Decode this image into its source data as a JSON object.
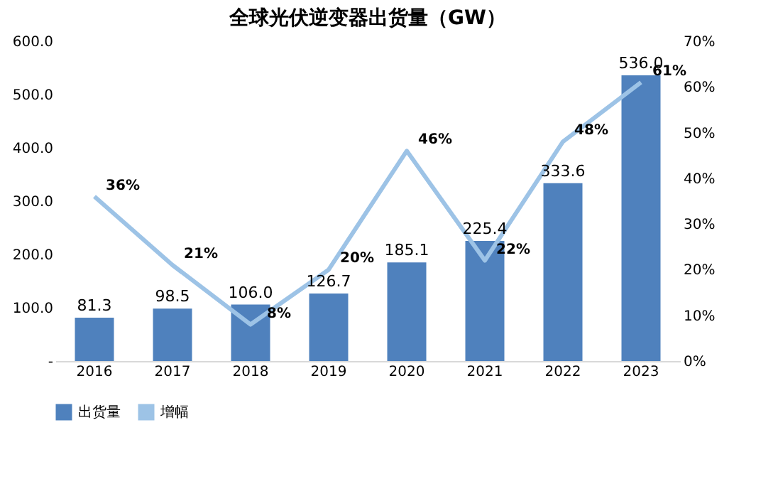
{
  "chart_data": {
    "type": "bar",
    "title": "全球光伏逆变器出货量（GW）",
    "categories": [
      "2016",
      "2017",
      "2018",
      "2019",
      "2020",
      "2021",
      "2022",
      "2023"
    ],
    "series": [
      {
        "name": "出货量",
        "color": "#4f81bd",
        "values": [
          81.3,
          98.5,
          106.0,
          126.7,
          185.1,
          225.4,
          333.6,
          536.0
        ],
        "value_labels": [
          "81.3",
          "98.5",
          "106.0",
          "126.7",
          "185.1",
          "225.4",
          "333.6",
          "536.0"
        ]
      },
      {
        "name": "增幅",
        "type": "line",
        "axis": "y2",
        "color": "#9dc3e6",
        "values": [
          36,
          21,
          8,
          20,
          46,
          22,
          48,
          61
        ],
        "value_labels": [
          "36%",
          "21%",
          "8%",
          "20%",
          "46%",
          "22%",
          "48%",
          "61%"
        ]
      }
    ],
    "ylim": [
      0,
      600
    ],
    "yticks": [
      {
        "value": 0,
        "label": "-"
      },
      {
        "value": 100,
        "label": "100.0"
      },
      {
        "value": 200,
        "label": "200.0"
      },
      {
        "value": 300,
        "label": "300.0"
      },
      {
        "value": 400,
        "label": "400.0"
      },
      {
        "value": 500,
        "label": "500.0"
      },
      {
        "value": 600,
        "label": "600.0"
      }
    ],
    "y2lim": [
      0,
      70
    ],
    "y2ticks": [
      {
        "value": 0,
        "label": "0%"
      },
      {
        "value": 10,
        "label": "10%"
      },
      {
        "value": 20,
        "label": "20%"
      },
      {
        "value": 30,
        "label": "30%"
      },
      {
        "value": 40,
        "label": "40%"
      },
      {
        "value": 50,
        "label": "50%"
      },
      {
        "value": 60,
        "label": "60%"
      },
      {
        "value": 70,
        "label": "70%"
      }
    ],
    "legend": "bottom",
    "grid": false,
    "marker": "none",
    "line_style": "solid"
  }
}
